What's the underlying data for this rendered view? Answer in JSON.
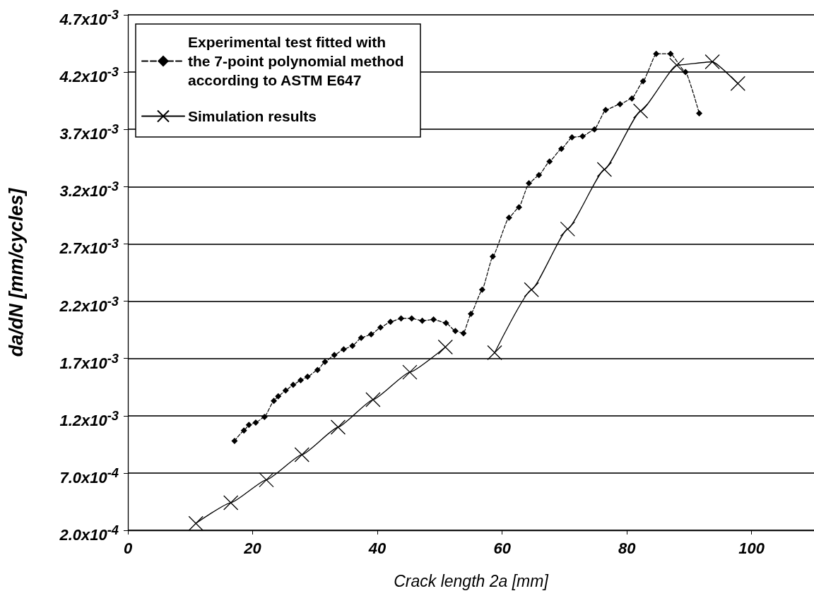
{
  "chart_data": {
    "type": "line",
    "xlabel": "Crack length 2a [mm]",
    "ylabel": "da/dN [mm/cycles]",
    "xlim": [
      0,
      110
    ],
    "xticks": [
      0,
      20,
      40,
      60,
      80,
      100
    ],
    "ylim": [
      0.0002,
      0.0047
    ],
    "yticks": [
      {
        "value": 0.0002,
        "label": "2.0x10$^{-4}$"
      },
      {
        "value": 0.0007,
        "label": "7.0x10$^{-4}$"
      },
      {
        "value": 0.0012,
        "label": "1.2x10$^{-3}$"
      },
      {
        "value": 0.0017,
        "label": "1.7x10$^{-3}$"
      },
      {
        "value": 0.0022,
        "label": "2.2x10$^{-3}$"
      },
      {
        "value": 0.0027,
        "label": "2.7x10$^{-3}$"
      },
      {
        "value": 0.0032,
        "label": "3.2x10$^{-3}$"
      },
      {
        "value": 0.0037,
        "label": "3.7x10$^{-3}$"
      },
      {
        "value": 0.0042,
        "label": "4.2x10$^{-3}$"
      },
      {
        "value": 0.0047,
        "label": "4.7x10$^{-3}$"
      }
    ],
    "grid": "y",
    "legend": "top left",
    "series": [
      {
        "name": "Experimental test fitted with the 7-point polynomial method according to ASTM E647",
        "color": "#000000",
        "marker": "diamond",
        "line_style": "dashed",
        "x": [
          17.1,
          18.6,
          19.4,
          20.5,
          21.9,
          23.4,
          24.1,
          25.3,
          26.5,
          27.7,
          28.8,
          30.4,
          31.6,
          33.1,
          34.6,
          36.0,
          37.4,
          39.0,
          40.5,
          42.1,
          43.8,
          45.5,
          47.2,
          49.0,
          51.0,
          52.5,
          53.8,
          55.0,
          56.8,
          58.5,
          61.1,
          62.7,
          64.3,
          65.9,
          67.6,
          69.5,
          71.2,
          72.9,
          74.8,
          76.6,
          78.9,
          80.8,
          82.6,
          84.7,
          87.0,
          89.4,
          91.6
        ],
        "values": [
          0.00098,
          0.00107,
          0.00112,
          0.00114,
          0.00119,
          0.00133,
          0.00137,
          0.00142,
          0.00147,
          0.00151,
          0.00154,
          0.0016,
          0.00167,
          0.00173,
          0.00178,
          0.00181,
          0.00188,
          0.00191,
          0.00197,
          0.00202,
          0.00205,
          0.00205,
          0.00203,
          0.00204,
          0.00201,
          0.00194,
          0.00192,
          0.00209,
          0.0023,
          0.00259,
          0.00293,
          0.00302,
          0.00323,
          0.0033,
          0.00342,
          0.00353,
          0.00363,
          0.00364,
          0.0037,
          0.00387,
          0.00392,
          0.00397,
          0.00412,
          0.00436,
          0.00436,
          0.0042,
          0.00384
        ]
      },
      {
        "name": "Simulation results",
        "color": "#000000",
        "marker": "cross",
        "line_style": "solid",
        "x": [
          10.9,
          16.5,
          22.2,
          27.9,
          33.7,
          39.3,
          45.2,
          50.9,
          54.9,
          58.8,
          64.7,
          70.5,
          76.4,
          82.2,
          88.0,
          93.7,
          97.8
        ],
        "values": [
          0.00026,
          0.00044,
          0.00064,
          0.00086,
          0.0011,
          0.00134,
          0.00158,
          0.0018,
          null,
          0.00175,
          0.0023,
          0.00283,
          0.00335,
          0.00386,
          0.00426,
          0.00429,
          0.0041
        ]
      }
    ]
  }
}
